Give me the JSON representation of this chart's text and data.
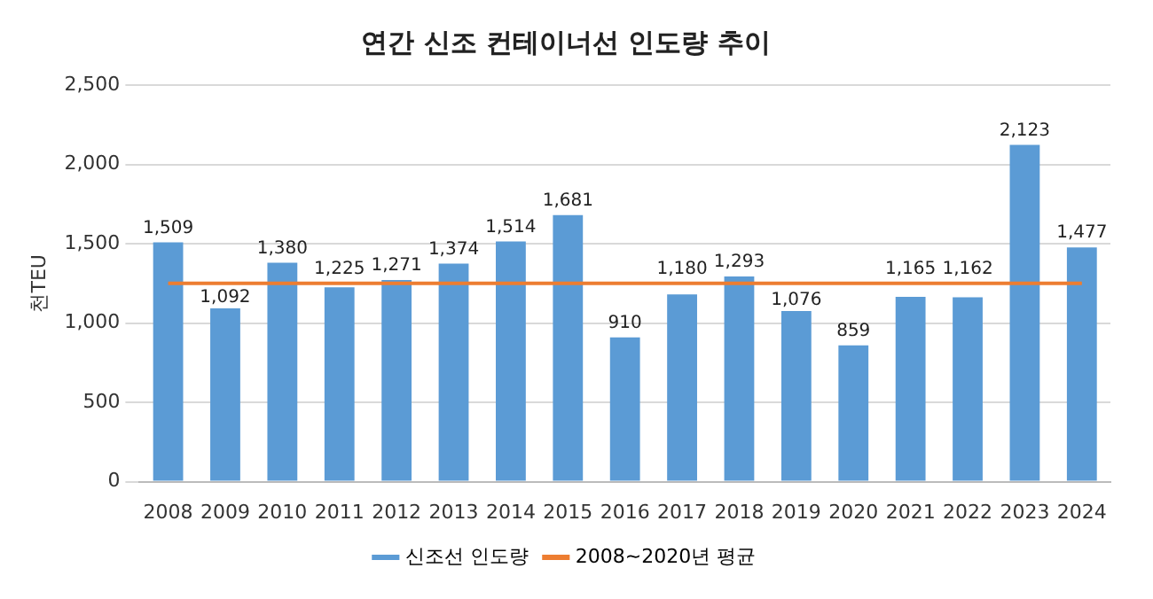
{
  "chart_data": {
    "type": "bar",
    "title": "연간 신조 컨테이너선 인도량 추이",
    "ylabel": "천TEU",
    "categories": [
      "2008",
      "2009",
      "2010",
      "2011",
      "2012",
      "2013",
      "2014",
      "2015",
      "2016",
      "2017",
      "2018",
      "2019",
      "2020",
      "2021",
      "2022",
      "2023",
      "2024"
    ],
    "series": [
      {
        "name": "신조선 인도량",
        "color": "#5b9bd5",
        "values": [
          1509,
          1092,
          1380,
          1225,
          1271,
          1374,
          1514,
          1681,
          910,
          1180,
          1293,
          1076,
          859,
          1165,
          1162,
          2123,
          1477
        ],
        "value_labels": [
          "1,509",
          "1,092",
          "1,380",
          "1,225",
          "1,271",
          "1,374",
          "1,514",
          "1,681",
          "910",
          "1,180",
          "1,293",
          "1,076",
          "859",
          "1,165",
          "1,162",
          "2,123",
          "1,477"
        ]
      },
      {
        "name": "2008~2020년 평균",
        "type": "line",
        "color": "#ed7d31",
        "values": [
          1250,
          1250,
          1250,
          1250,
          1250,
          1250,
          1250,
          1250,
          1250,
          1250,
          1250,
          1250,
          1250,
          1250,
          1250,
          1250,
          1250
        ],
        "marker": "none"
      }
    ],
    "ylim": [
      0,
      2500
    ],
    "yticks": [
      {
        "value": 0,
        "label": "0"
      },
      {
        "value": 500,
        "label": "500"
      },
      {
        "value": 1000,
        "label": "1,000"
      },
      {
        "value": 1500,
        "label": "1,500"
      },
      {
        "value": 2000,
        "label": "2,000"
      },
      {
        "value": 2500,
        "label": "2,500"
      }
    ],
    "grid": "y",
    "legend": "bottom"
  }
}
